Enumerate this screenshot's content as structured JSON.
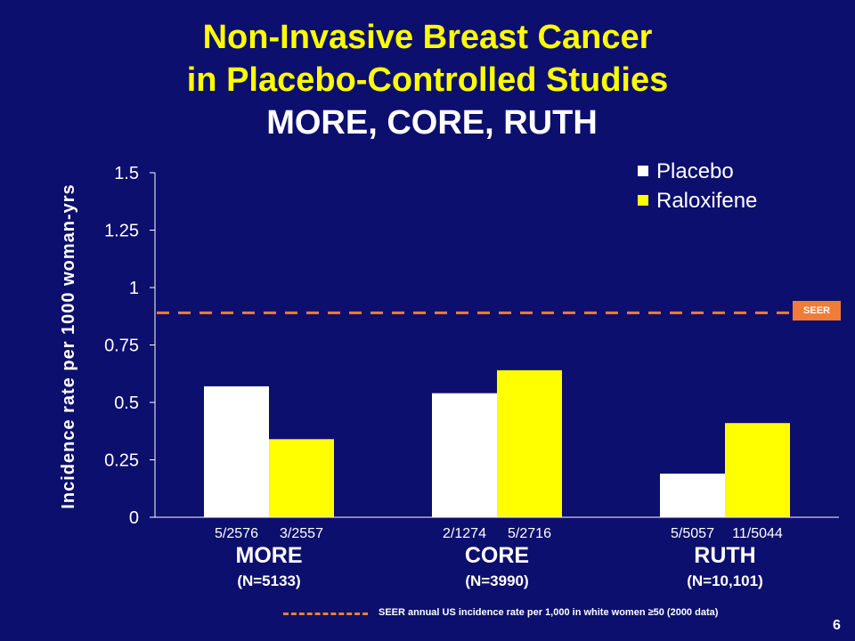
{
  "title": {
    "line1": "Non-Invasive Breast Cancer",
    "line2": "in Placebo-Controlled Studies",
    "line3": "MORE, CORE, RUTH"
  },
  "chart_data": {
    "type": "bar",
    "ylabel": "Incidence rate per 1000 woman-yrs",
    "ylim": [
      0,
      1.5
    ],
    "yticks": [
      "0",
      "0.25",
      "0.5",
      "0.75",
      "1",
      "1.25",
      "1.5"
    ],
    "yticks_values": [
      0,
      0.25,
      0.5,
      0.75,
      1,
      1.25,
      1.5
    ],
    "categories": [
      "MORE",
      "CORE",
      "RUTH"
    ],
    "category_n": [
      "(N=5133)",
      "(N=3990)",
      "(N=10,101)"
    ],
    "series": [
      {
        "name": "Placebo",
        "color": "#ffffff",
        "values": [
          0.57,
          0.54,
          0.19
        ],
        "counts": [
          "5/2576",
          "2/1274",
          "5/5057"
        ]
      },
      {
        "name": "Raloxifene",
        "color": "#ffff00",
        "values": [
          0.34,
          0.64,
          0.41
        ],
        "counts": [
          "3/2557",
          "5/2716",
          "11/5044"
        ]
      }
    ],
    "reference_line": {
      "label": "SEER",
      "value": 0.89,
      "color": "#f07c3a"
    },
    "legend_position": "top-right",
    "grid": false
  },
  "footnote": "SEER annual US incidence rate per 1,000 in white women ≥50 (2000 data)",
  "page_number": "6"
}
